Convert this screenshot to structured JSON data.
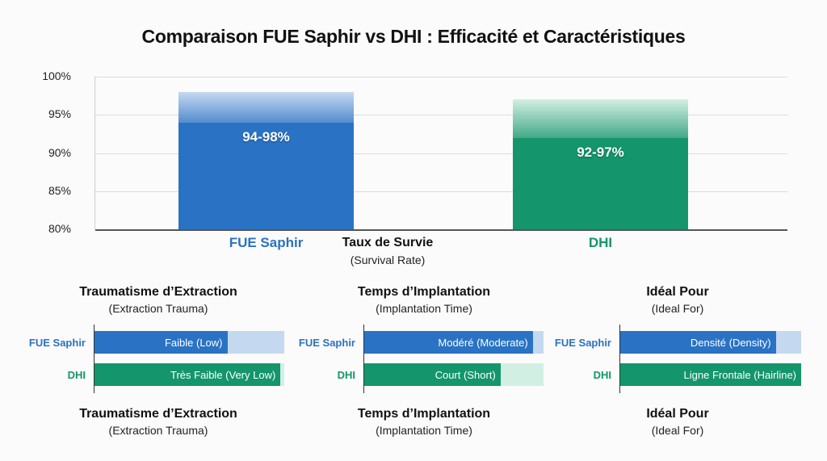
{
  "colors": {
    "fue": "#2a72c4",
    "fue_light": "#c4d9f0",
    "dhi": "#14956b",
    "dhi_light": "#d2efe3"
  },
  "chart_data": [
    {
      "type": "bar",
      "title": "Comparaison FUE Saphir vs DHI : Efficacité et Caractéristiques",
      "categories": [
        "FUE Saphir",
        "DHI"
      ],
      "xlabel": "Taux de Survie",
      "xlabel_sub": "(Survival Rate)",
      "ylim": [
        80,
        100
      ],
      "yticks": [
        "80%",
        "85%",
        "90%",
        "95%",
        "100%"
      ],
      "ytick_values": [
        80,
        85,
        90,
        95,
        100
      ],
      "grid": true,
      "series": [
        {
          "ranges": [
            [
              94,
              98
            ],
            [
              92,
              97
            ]
          ],
          "labels": [
            "94-98%",
            "92-97%"
          ]
        }
      ]
    },
    {
      "type": "bar",
      "orientation": "horizontal",
      "title": "Traumatisme d’Extraction",
      "subtitle": "(Extraction Trauma)",
      "categories": [
        "FUE Saphir",
        "DHI"
      ],
      "values": [
        0.7,
        0.98
      ],
      "labels": [
        "Faible (Low)",
        "Très Faible (Very Low)"
      ]
    },
    {
      "type": "bar",
      "orientation": "horizontal",
      "title": "Temps d’Implantation",
      "subtitle": "(Implantation Time)",
      "categories": [
        "FUE Saphir",
        "DHI"
      ],
      "values": [
        0.94,
        0.76
      ],
      "labels": [
        "Modéré (Moderate)",
        "Court (Short)"
      ]
    },
    {
      "type": "bar",
      "orientation": "horizontal",
      "title": "Idéal Pour",
      "subtitle": "(Ideal For)",
      "categories": [
        "FUE Saphir",
        "DHI"
      ],
      "values": [
        0.86,
        1.0
      ],
      "labels": [
        "Densité (Density)",
        "Ligne Frontale (Hairline)"
      ]
    }
  ],
  "footer": [
    {
      "title": "Traumatisme d’Extraction",
      "subtitle": "(Extraction Trauma)"
    },
    {
      "title": "Temps d’Implantation",
      "subtitle": "(Implantation Time)"
    },
    {
      "title": "Idéal Pour",
      "subtitle": "(Ideal For)"
    }
  ]
}
